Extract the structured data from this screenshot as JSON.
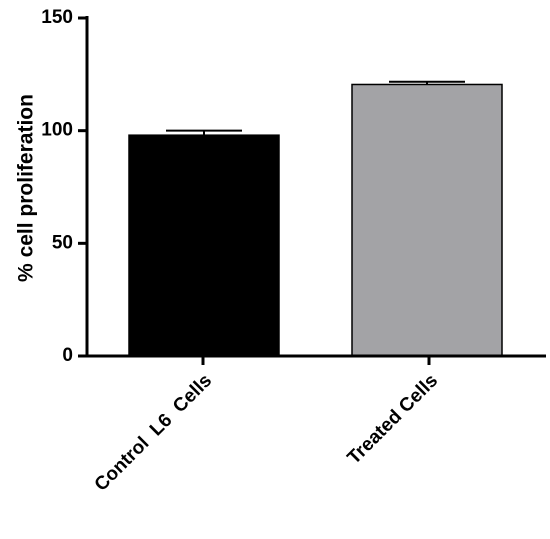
{
  "chart_data": {
    "type": "bar",
    "categories": [
      "Control  L6  Cells",
      "Treated Cells"
    ],
    "values": [
      98,
      120.5
    ],
    "errors": [
      2,
      1.2
    ],
    "colors": [
      "#000000",
      "#a3a3a6"
    ],
    "xlabel": "",
    "ylabel": "% cell proliferation",
    "ylim": [
      0,
      150
    ],
    "yticks": [
      0,
      50,
      100,
      150
    ],
    "grid": false,
    "legend": "none"
  }
}
